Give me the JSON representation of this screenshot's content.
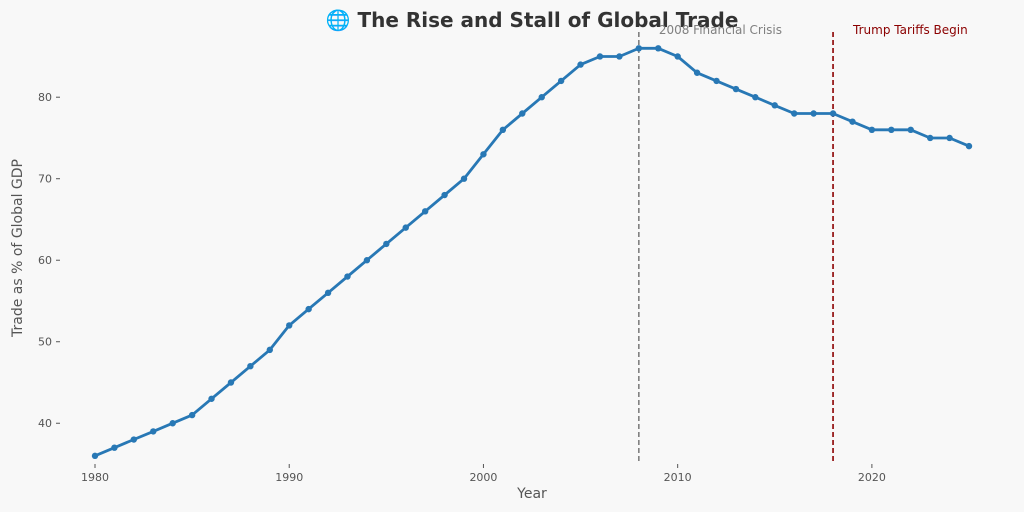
{
  "chart_data": {
    "type": "line",
    "title": "🌐 The Rise and Stall of Global Trade",
    "xlabel": "Year",
    "ylabel": "Trade as % of Global GDP",
    "x_ticks": [
      1980,
      1990,
      2000,
      2010,
      2020
    ],
    "y_ticks": [
      40,
      50,
      60,
      70,
      80
    ],
    "xlim": [
      1980,
      2025
    ],
    "ylim": [
      35,
      88
    ],
    "grid": false,
    "series": [
      {
        "color": "#2878b5",
        "x": [
          1980,
          1981,
          1982,
          1983,
          1984,
          1985,
          1986,
          1987,
          1988,
          1989,
          1990,
          1991,
          1992,
          1993,
          1994,
          1995,
          1996,
          1997,
          1998,
          1999,
          2000,
          2001,
          2002,
          2003,
          2004,
          2005,
          2006,
          2007,
          2008,
          2009,
          2010,
          2011,
          2012,
          2013,
          2014,
          2015,
          2016,
          2017,
          2018,
          2019,
          2020,
          2021,
          2022,
          2023,
          2024,
          2025
        ],
        "y": [
          36,
          37,
          38,
          39,
          40,
          41,
          43,
          45,
          47,
          49,
          52,
          54,
          56,
          58,
          60,
          62,
          64,
          66,
          68,
          70,
          73,
          76,
          78,
          80,
          82,
          84,
          85,
          85,
          86,
          86,
          85,
          83,
          82,
          81,
          80,
          79,
          78,
          78,
          78,
          77,
          76,
          76,
          76,
          75,
          75,
          74
        ]
      }
    ],
    "annotations": [
      {
        "x": 2008,
        "label": "2008 Financial Crisis",
        "color": "#808080"
      },
      {
        "x": 2018,
        "label": "Trump Tariffs Begin",
        "color": "#8b0000"
      }
    ]
  }
}
